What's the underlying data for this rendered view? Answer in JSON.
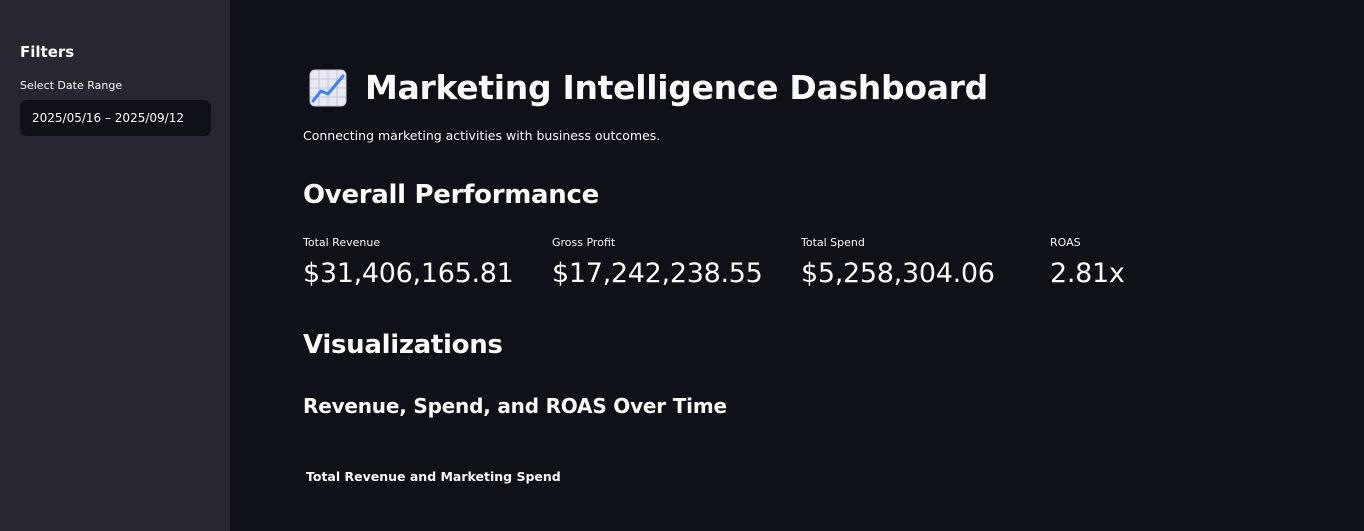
{
  "sidebar": {
    "title": "Filters",
    "date_label": "Select Date Range",
    "date_value": "2025/05/16 – 2025/09/12"
  },
  "header": {
    "icon": "chart-increasing-icon",
    "title": "Marketing Intelligence Dashboard",
    "subtitle": "Connecting marketing activities with business outcomes."
  },
  "performance": {
    "heading": "Overall Performance",
    "metrics": [
      {
        "label": "Total Revenue",
        "value": "$31,406,165.81"
      },
      {
        "label": "Gross Profit",
        "value": "$17,242,238.55"
      },
      {
        "label": "Total Spend",
        "value": "$5,258,304.06"
      },
      {
        "label": "ROAS",
        "value": "2.81x"
      }
    ]
  },
  "visualizations": {
    "heading": "Visualizations",
    "subheading": "Revenue, Spend, and ROAS Over Time",
    "chart_title": "Total Revenue and Marketing Spend"
  },
  "colors": {
    "background": "#0e1117",
    "sidebar": "#262730",
    "text": "#fafafa",
    "icon_line": "#3b82f6"
  }
}
